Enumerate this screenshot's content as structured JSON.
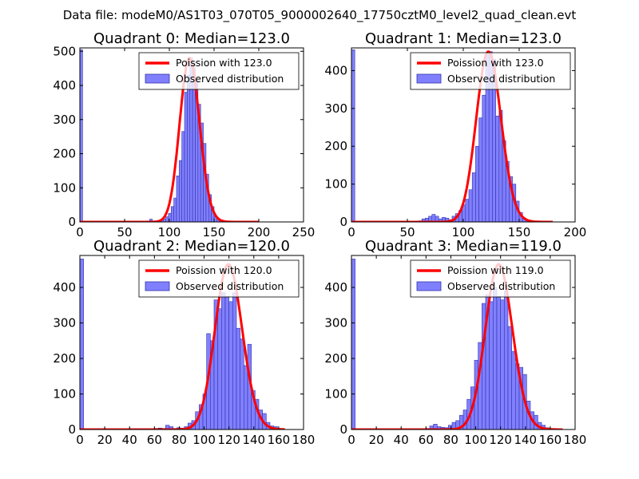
{
  "figure": {
    "suptitle": "Data file: modeM0/AS1T03_070T05_9000002640_17750cztM0_level2_quad_clean.evt"
  },
  "colors": {
    "hist_fill": "#8080ff",
    "hist_edge": "#3333aa",
    "poisson": "#ff0000",
    "axes": "#000000"
  },
  "chart_data": [
    {
      "type": "bar",
      "title": "Quadrant 0: Median=123.0",
      "median": 123.0,
      "legend": [
        "Poission with 123.0",
        "Observed distribution"
      ],
      "legend_position": "top-right",
      "xlim": [
        0,
        250
      ],
      "ylim": [
        0,
        510
      ],
      "xticks": [
        0,
        50,
        100,
        150,
        200,
        250
      ],
      "xtick_labels": [
        "0",
        "50",
        "100",
        "150",
        "200",
        "250"
      ],
      "yticks": [
        0,
        100,
        200,
        300,
        400,
        500
      ],
      "ytick_labels": [
        "0",
        "100",
        "200",
        "300",
        "400",
        "500"
      ],
      "bin_width": 3,
      "bins": [
        [
          0,
          505
        ],
        [
          75,
          3
        ],
        [
          78,
          8
        ],
        [
          81,
          2
        ],
        [
          84,
          2
        ],
        [
          87,
          4
        ],
        [
          90,
          5
        ],
        [
          93,
          8
        ],
        [
          96,
          15
        ],
        [
          99,
          25
        ],
        [
          102,
          45
        ],
        [
          105,
          70
        ],
        [
          108,
          135
        ],
        [
          111,
          180
        ],
        [
          114,
          265
        ],
        [
          117,
          380
        ],
        [
          120,
          430
        ],
        [
          123,
          480
        ],
        [
          126,
          470
        ],
        [
          129,
          420
        ],
        [
          132,
          345
        ],
        [
          135,
          290
        ],
        [
          138,
          230
        ],
        [
          141,
          140
        ],
        [
          144,
          80
        ],
        [
          147,
          45
        ],
        [
          150,
          15
        ],
        [
          153,
          5
        ],
        [
          156,
          3
        ]
      ],
      "poisson_peak": 480,
      "poisson_x": [
        0,
        200
      ]
    },
    {
      "type": "bar",
      "title": "Quadrant 1: Median=123.0",
      "median": 123.0,
      "legend": [
        "Poission with 123.0",
        "Observed distribution"
      ],
      "legend_position": "top-right",
      "xlim": [
        0,
        200
      ],
      "ylim": [
        0,
        460
      ],
      "xticks": [
        0,
        50,
        100,
        150,
        200
      ],
      "xtick_labels": [
        "0",
        "50",
        "100",
        "150",
        "200"
      ],
      "yticks": [
        0,
        100,
        200,
        300,
        400
      ],
      "ytick_labels": [
        "0",
        "100",
        "200",
        "300",
        "400"
      ],
      "bin_width": 3,
      "bins": [
        [
          0,
          455
        ],
        [
          60,
          3
        ],
        [
          63,
          8
        ],
        [
          66,
          10
        ],
        [
          69,
          15
        ],
        [
          72,
          20
        ],
        [
          75,
          15
        ],
        [
          78,
          8
        ],
        [
          81,
          12
        ],
        [
          84,
          10
        ],
        [
          87,
          6
        ],
        [
          90,
          15
        ],
        [
          93,
          22
        ],
        [
          96,
          30
        ],
        [
          99,
          45
        ],
        [
          102,
          60
        ],
        [
          105,
          85
        ],
        [
          108,
          130
        ],
        [
          111,
          200
        ],
        [
          114,
          275
        ],
        [
          117,
          335
        ],
        [
          120,
          445
        ],
        [
          123,
          450
        ],
        [
          126,
          430
        ],
        [
          129,
          280
        ],
        [
          132,
          295
        ],
        [
          135,
          215
        ],
        [
          138,
          160
        ],
        [
          141,
          120
        ],
        [
          144,
          100
        ],
        [
          147,
          55
        ],
        [
          150,
          25
        ],
        [
          153,
          10
        ],
        [
          156,
          5
        ]
      ],
      "poisson_peak": 450,
      "poisson_x": [
        0,
        180
      ]
    },
    {
      "type": "bar",
      "title": "Quadrant 2: Median=120.0",
      "median": 120.0,
      "legend": [
        "Poission with 120.0",
        "Observed distribution"
      ],
      "legend_position": "top-right",
      "xlim": [
        0,
        180
      ],
      "ylim": [
        0,
        490
      ],
      "xticks": [
        0,
        20,
        40,
        60,
        80,
        100,
        120,
        140,
        160,
        180
      ],
      "xtick_labels": [
        "0",
        "20",
        "40",
        "60",
        "80",
        "100",
        "120",
        "140",
        "160",
        "180"
      ],
      "yticks": [
        0,
        100,
        200,
        300,
        400
      ],
      "ytick_labels": [
        "0",
        "100",
        "200",
        "300",
        "400"
      ],
      "bin_width": 3,
      "bins": [
        [
          0,
          480
        ],
        [
          60,
          3
        ],
        [
          63,
          4
        ],
        [
          66,
          3
        ],
        [
          69,
          12
        ],
        [
          72,
          8
        ],
        [
          75,
          3
        ],
        [
          78,
          5
        ],
        [
          81,
          4
        ],
        [
          84,
          8
        ],
        [
          87,
          18
        ],
        [
          90,
          25
        ],
        [
          93,
          50
        ],
        [
          96,
          70
        ],
        [
          99,
          100
        ],
        [
          102,
          270
        ],
        [
          105,
          250
        ],
        [
          108,
          365
        ],
        [
          111,
          340
        ],
        [
          114,
          385
        ],
        [
          117,
          375
        ],
        [
          120,
          360
        ],
        [
          123,
          385
        ],
        [
          126,
          285
        ],
        [
          129,
          255
        ],
        [
          132,
          180
        ],
        [
          135,
          240
        ],
        [
          138,
          110
        ],
        [
          141,
          85
        ],
        [
          144,
          55
        ],
        [
          147,
          45
        ],
        [
          150,
          20
        ],
        [
          153,
          10
        ],
        [
          156,
          8
        ],
        [
          159,
          3
        ]
      ],
      "poisson_peak": 465,
      "poisson_x": [
        0,
        165
      ]
    },
    {
      "type": "bar",
      "title": "Quadrant 3: Median=119.0",
      "median": 119.0,
      "legend": [
        "Poission with 119.0",
        "Observed distribution"
      ],
      "legend_position": "top-right",
      "xlim": [
        0,
        180
      ],
      "ylim": [
        0,
        490
      ],
      "xticks": [
        0,
        20,
        40,
        60,
        80,
        100,
        120,
        140,
        160,
        180
      ],
      "xtick_labels": [
        "0",
        "20",
        "40",
        "60",
        "80",
        "100",
        "120",
        "140",
        "160",
        "180"
      ],
      "yticks": [
        0,
        100,
        200,
        300,
        400
      ],
      "ytick_labels": [
        "0",
        "100",
        "200",
        "300",
        "400"
      ],
      "bin_width": 3,
      "bins": [
        [
          0,
          480
        ],
        [
          60,
          3
        ],
        [
          63,
          10
        ],
        [
          66,
          15
        ],
        [
          69,
          8
        ],
        [
          72,
          6
        ],
        [
          75,
          5
        ],
        [
          78,
          12
        ],
        [
          81,
          20
        ],
        [
          84,
          25
        ],
        [
          87,
          40
        ],
        [
          90,
          55
        ],
        [
          93,
          85
        ],
        [
          96,
          120
        ],
        [
          99,
          195
        ],
        [
          102,
          245
        ],
        [
          105,
          355
        ],
        [
          108,
          380
        ],
        [
          111,
          360
        ],
        [
          114,
          400
        ],
        [
          117,
          375
        ],
        [
          120,
          365
        ],
        [
          123,
          390
        ],
        [
          126,
          290
        ],
        [
          129,
          220
        ],
        [
          132,
          185
        ],
        [
          135,
          175
        ],
        [
          138,
          155
        ],
        [
          141,
          80
        ],
        [
          144,
          50
        ],
        [
          147,
          40
        ],
        [
          150,
          20
        ],
        [
          153,
          12
        ],
        [
          156,
          5
        ]
      ],
      "poisson_peak": 465,
      "poisson_x": [
        0,
        170
      ]
    }
  ]
}
